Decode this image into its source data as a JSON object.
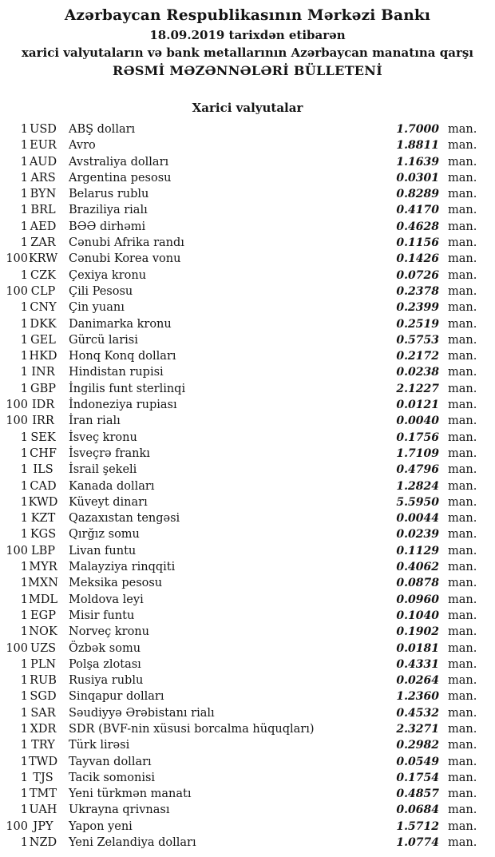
{
  "header": {
    "bank_title": "Azərbaycan Respublikasının Mərkəzi Bankı",
    "date_line": "18.09.2019 tarixdən etibarən",
    "scope_line": "xarici valyutaların və bank metallarının Azərbaycan manatına qarşı",
    "bulletin_title": "RƏSMİ MƏZƏNNƏLƏRİ BÜLLETENİ"
  },
  "section": {
    "title": "Xarici valyutalar"
  },
  "table": {
    "unit_label": "man.",
    "rows": [
      {
        "nominal": "1",
        "code": "USD",
        "name": "ABŞ dolları",
        "rate": "1.7000"
      },
      {
        "nominal": "1",
        "code": "EUR",
        "name": "Avro",
        "rate": "1.8811"
      },
      {
        "nominal": "1",
        "code": "AUD",
        "name": "Avstraliya dolları",
        "rate": "1.1639"
      },
      {
        "nominal": "1",
        "code": "ARS",
        "name": "Argentina pesosu",
        "rate": "0.0301"
      },
      {
        "nominal": "1",
        "code": "BYN",
        "name": "Belarus rublu",
        "rate": "0.8289"
      },
      {
        "nominal": "1",
        "code": "BRL",
        "name": "Braziliya rialı",
        "rate": "0.4170"
      },
      {
        "nominal": "1",
        "code": "AED",
        "name": "BƏƏ dirhəmi",
        "rate": "0.4628"
      },
      {
        "nominal": "1",
        "code": "ZAR",
        "name": "Cənubi Afrika randı",
        "rate": "0.1156"
      },
      {
        "nominal": "100",
        "code": "KRW",
        "name": "Cənubi Korea vonu",
        "rate": "0.1426"
      },
      {
        "nominal": "1",
        "code": "CZK",
        "name": "Çexiya kronu",
        "rate": "0.0726"
      },
      {
        "nominal": "100",
        "code": "CLP",
        "name": "Çili Pesosu",
        "rate": "0.2378"
      },
      {
        "nominal": "1",
        "code": "CNY",
        "name": "Çin yuanı",
        "rate": "0.2399"
      },
      {
        "nominal": "1",
        "code": "DKK",
        "name": "Danimarka kronu",
        "rate": "0.2519"
      },
      {
        "nominal": "1",
        "code": "GEL",
        "name": "Gürcü larisi",
        "rate": "0.5753"
      },
      {
        "nominal": "1",
        "code": "HKD",
        "name": "Honq Konq dolları",
        "rate": "0.2172"
      },
      {
        "nominal": "1",
        "code": "INR",
        "name": "Hindistan rupisi",
        "rate": "0.0238"
      },
      {
        "nominal": "1",
        "code": "GBP",
        "name": "İngilis funt sterlinqi",
        "rate": "2.1227"
      },
      {
        "nominal": "100",
        "code": "IDR",
        "name": "İndoneziya rupiası",
        "rate": "0.0121"
      },
      {
        "nominal": "100",
        "code": "IRR",
        "name": "İran rialı",
        "rate": "0.0040"
      },
      {
        "nominal": "1",
        "code": "SEK",
        "name": "İsveç kronu",
        "rate": "0.1756"
      },
      {
        "nominal": "1",
        "code": "CHF",
        "name": "İsveçrə frankı",
        "rate": "1.7109"
      },
      {
        "nominal": "1",
        "code": "ILS",
        "name": "İsrail şekeli",
        "rate": "0.4796"
      },
      {
        "nominal": "1",
        "code": "CAD",
        "name": "Kanada dolları",
        "rate": "1.2824"
      },
      {
        "nominal": "1",
        "code": "KWD",
        "name": "Küveyt dinarı",
        "rate": "5.5950"
      },
      {
        "nominal": "1",
        "code": "KZT",
        "name": "Qazaxıstan tengəsi",
        "rate": "0.0044"
      },
      {
        "nominal": "1",
        "code": "KGS",
        "name": "Qırğız somu",
        "rate": "0.0239"
      },
      {
        "nominal": "100",
        "code": "LBP",
        "name": "Livan funtu",
        "rate": "0.1129"
      },
      {
        "nominal": "1",
        "code": "MYR",
        "name": "Malayziya rinqqiti",
        "rate": "0.4062"
      },
      {
        "nominal": "1",
        "code": "MXN",
        "name": "Meksika pesosu",
        "rate": "0.0878"
      },
      {
        "nominal": "1",
        "code": "MDL",
        "name": "Moldova leyi",
        "rate": "0.0960"
      },
      {
        "nominal": "1",
        "code": "EGP",
        "name": "Misir funtu",
        "rate": "0.1040"
      },
      {
        "nominal": "1",
        "code": "NOK",
        "name": "Norveç kronu",
        "rate": "0.1902"
      },
      {
        "nominal": "100",
        "code": "UZS",
        "name": "Özbək somu",
        "rate": "0.0181"
      },
      {
        "nominal": "1",
        "code": "PLN",
        "name": "Polşa zlotası",
        "rate": "0.4331"
      },
      {
        "nominal": "1",
        "code": "RUB",
        "name": "Rusiya rublu",
        "rate": "0.0264"
      },
      {
        "nominal": "1",
        "code": "SGD",
        "name": "Sinqapur dolları",
        "rate": "1.2360"
      },
      {
        "nominal": "1",
        "code": "SAR",
        "name": "Səudiyyə Ərəbistanı rialı",
        "rate": "0.4532"
      },
      {
        "nominal": "1",
        "code": "XDR",
        "name": "SDR (BVF-nin xüsusi borcalma hüquqları)",
        "rate": "2.3271"
      },
      {
        "nominal": "1",
        "code": "TRY",
        "name": "Türk lirəsi",
        "rate": "0.2982"
      },
      {
        "nominal": "1",
        "code": "TWD",
        "name": "Tayvan dolları",
        "rate": "0.0549"
      },
      {
        "nominal": "1",
        "code": "TJS",
        "name": "Tacik somonisi",
        "rate": "0.1754"
      },
      {
        "nominal": "1",
        "code": "TMT",
        "name": "Yeni türkmən manatı",
        "rate": "0.4857"
      },
      {
        "nominal": "1",
        "code": "UAH",
        "name": "Ukrayna qrivnası",
        "rate": "0.0684"
      },
      {
        "nominal": "100",
        "code": "JPY",
        "name": "Yapon yeni",
        "rate": "1.5712"
      },
      {
        "nominal": "1",
        "code": "NZD",
        "name": "Yeni Zelandiya dolları",
        "rate": "1.0774"
      }
    ]
  },
  "colors": {
    "text": "#141414",
    "background": "#ffffff"
  }
}
